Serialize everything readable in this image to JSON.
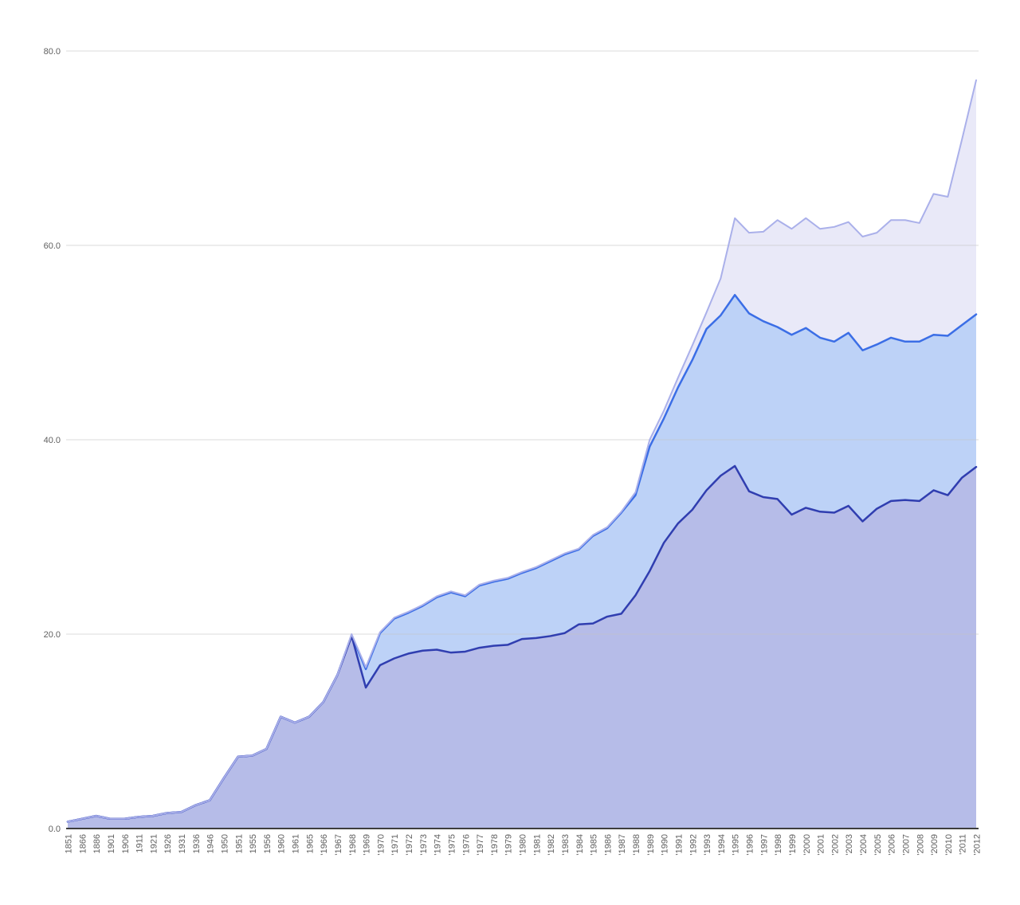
{
  "page": {
    "background": "#ffffff"
  },
  "chart_data": {
    "type": "area",
    "title": "",
    "xlabel": "",
    "ylabel": "",
    "legend": "none",
    "grid": "horizontal",
    "ylim": [
      0,
      80
    ],
    "y_ticks": [
      "0.0",
      "20.0",
      "40.0",
      "60.0",
      "80.0"
    ],
    "x_labels": [
      "1851",
      "1866",
      "1886",
      "1901",
      "1906",
      "1911",
      "1921",
      "1926",
      "1931",
      "1936",
      "1946",
      "1950",
      "1951",
      "1955",
      "1956",
      "1960",
      "1961",
      "1965",
      "'1966",
      "'1967",
      "'1968",
      "'1969",
      "'1970",
      "'1971",
      "'1972",
      "'1973",
      "'1974",
      "'1975",
      "'1976",
      "'1977",
      "'1978",
      "'1979",
      "'1980",
      "'1981",
      "'1982",
      "'1983",
      "'1984",
      "'1985",
      "'1986",
      "'1987",
      "'1988",
      "'1989",
      "'1990",
      "'1991",
      "'1992",
      "'1993",
      "'1994",
      "'1995",
      "'1996",
      "'1997",
      "'1998",
      "'1999",
      "'2000",
      "'2001",
      "'2002",
      "'2003",
      "'2004",
      "'2005",
      "'2006",
      "'2007",
      "'2008",
      "'2009",
      "'2010",
      "'2011",
      "'2012"
    ],
    "series": [
      {
        "name": "series-top",
        "line_color": "#aab0ea",
        "fill_color": "#e9e9f8",
        "line_width": 2,
        "values": [
          0.7,
          1.0,
          1.3,
          1.0,
          1.0,
          1.2,
          1.3,
          1.6,
          1.7,
          2.4,
          2.9,
          5.2,
          7.4,
          7.5,
          8.2,
          11.5,
          10.9,
          11.5,
          13.0,
          15.8,
          20.0,
          16.6,
          20.2,
          21.7,
          22.3,
          23.0,
          23.9,
          24.4,
          24.0,
          25.1,
          25.5,
          25.8,
          26.4,
          26.9,
          27.6,
          28.3,
          28.8,
          30.2,
          31.0,
          32.6,
          34.6,
          40.0,
          43.0,
          46.4,
          49.7,
          53.1,
          56.6,
          62.8,
          61.3,
          61.4,
          62.6,
          61.7,
          62.8,
          61.7,
          61.9,
          62.4,
          60.9,
          61.3,
          62.6,
          62.6,
          62.3,
          65.3,
          65.0,
          70.9,
          77.0
        ]
      },
      {
        "name": "series-middle",
        "line_color": "#3b6ee6",
        "fill_color": "#bdd2f7",
        "line_width": 2.5,
        "values": [
          0.7,
          1.0,
          1.3,
          1.0,
          1.0,
          1.2,
          1.3,
          1.6,
          1.7,
          2.4,
          2.9,
          5.2,
          7.4,
          7.5,
          8.2,
          11.5,
          10.9,
          11.5,
          13.0,
          15.8,
          19.9,
          16.4,
          20.1,
          21.6,
          22.2,
          22.9,
          23.8,
          24.3,
          23.9,
          25.0,
          25.4,
          25.7,
          26.3,
          26.8,
          27.5,
          28.2,
          28.7,
          30.1,
          30.9,
          32.5,
          34.3,
          39.3,
          42.2,
          45.4,
          48.2,
          51.4,
          52.8,
          54.9,
          53.0,
          52.2,
          51.6,
          50.8,
          51.5,
          50.5,
          50.1,
          51.0,
          49.2,
          49.8,
          50.5,
          50.1,
          50.1,
          50.8,
          50.7,
          51.8,
          52.9
        ]
      },
      {
        "name": "series-bottom",
        "line_color": "#303eb0",
        "fill_color": "#b6bce8",
        "line_width": 2.5,
        "values": [
          0.7,
          1.0,
          1.3,
          1.0,
          1.0,
          1.2,
          1.3,
          1.6,
          1.7,
          2.4,
          2.9,
          5.2,
          7.4,
          7.5,
          8.2,
          11.5,
          10.9,
          11.5,
          13.0,
          15.8,
          19.8,
          14.5,
          16.8,
          17.5,
          18.0,
          18.3,
          18.4,
          18.1,
          18.2,
          18.6,
          18.8,
          18.9,
          19.5,
          19.6,
          19.8,
          20.1,
          21.0,
          21.1,
          21.8,
          22.1,
          24.0,
          26.5,
          29.4,
          31.4,
          32.8,
          34.8,
          36.3,
          37.3,
          34.7,
          34.1,
          33.9,
          32.3,
          33.0,
          32.6,
          32.5,
          33.2,
          31.6,
          32.9,
          33.7,
          33.8,
          33.7,
          34.8,
          34.3,
          36.1,
          37.2
        ]
      }
    ],
    "axis": {
      "grid_color": "#c4c4c4",
      "baseline_color": "#3d3d3d",
      "tick_label_color": "#5f5f5f",
      "tick_font_size": 11
    }
  }
}
